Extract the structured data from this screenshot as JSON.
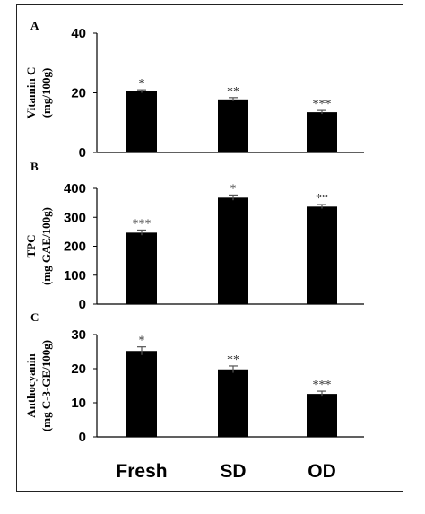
{
  "chart_data": [
    {
      "type": "bar",
      "panel": "A",
      "categories": [
        "Fresh",
        "SD",
        "OD"
      ],
      "values": [
        20.5,
        17.8,
        13.5
      ],
      "errors": [
        0.5,
        0.6,
        0.6
      ],
      "significance": [
        "*",
        "**",
        "***"
      ],
      "ylabel_line1": "Vitamin C",
      "ylabel_line2": "(mg/100g)",
      "ylim": [
        0,
        40
      ],
      "yticks": [
        0,
        20,
        40
      ],
      "grid": false,
      "bar_color": "#000000"
    },
    {
      "type": "bar",
      "panel": "B",
      "categories": [
        "Fresh",
        "SD",
        "OD"
      ],
      "values": [
        247,
        368,
        337
      ],
      "errors": [
        9,
        9,
        7
      ],
      "significance": [
        "***",
        "*",
        "**"
      ],
      "ylabel_line1": "TPC",
      "ylabel_line2": "(mg GAE/100g)",
      "ylim": [
        0,
        400
      ],
      "yticks": [
        0,
        100,
        200,
        300,
        400
      ],
      "grid": false,
      "bar_color": "#000000"
    },
    {
      "type": "bar",
      "panel": "C",
      "categories": [
        "Fresh",
        "SD",
        "OD"
      ],
      "values": [
        25.2,
        19.8,
        12.6
      ],
      "errors": [
        1.2,
        1.0,
        0.8
      ],
      "significance": [
        "*",
        "**",
        "***"
      ],
      "ylabel_line1": "Anthocyanin",
      "ylabel_line2": "(mg C-3-GE/100g)",
      "ylim": [
        0,
        30
      ],
      "yticks": [
        0,
        10,
        20,
        30
      ],
      "grid": false,
      "bar_color": "#000000"
    }
  ]
}
